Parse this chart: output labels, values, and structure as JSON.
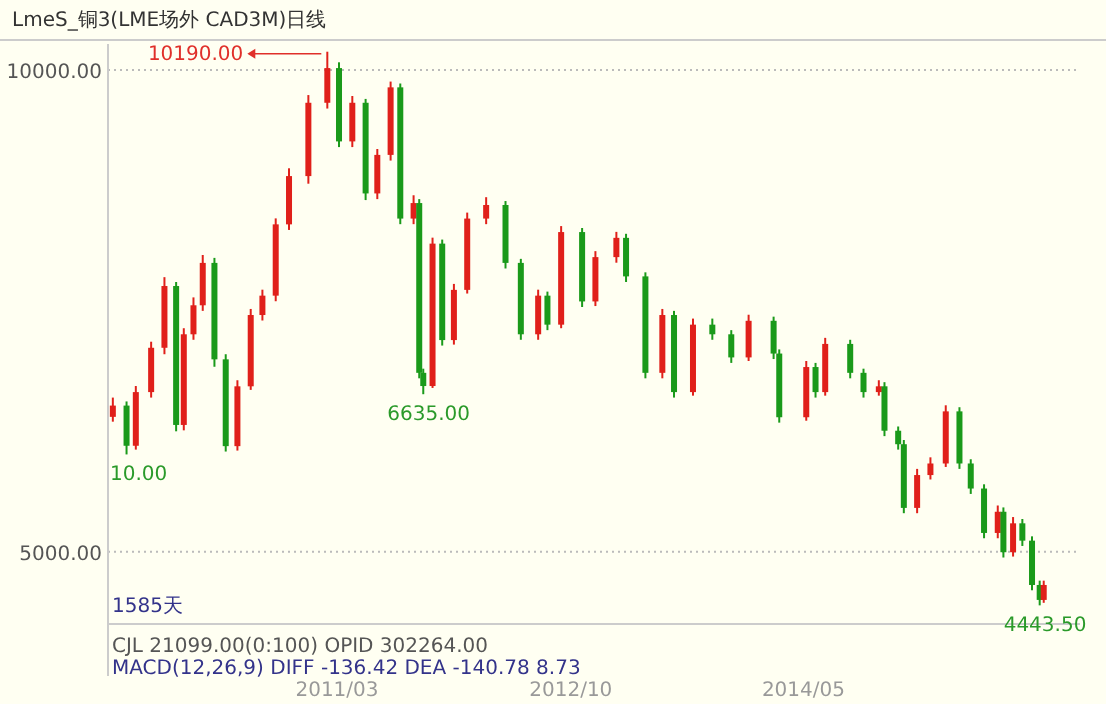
{
  "chart_data": {
    "type": "candlestick",
    "title": "LmeS_铜3(LME场外 CAD3M)日线",
    "x": [
      "2009-08-22",
      "2009-09-25",
      "2009-10-18",
      "2009-11-25",
      "2009-12-28",
      "2010-01-26",
      "2010-02-14",
      "2010-03-10",
      "2010-04-02",
      "2010-05-01",
      "2010-05-29",
      "2010-06-27",
      "2010-07-30",
      "2010-08-28",
      "2010-09-30",
      "2010-11-02",
      "2010-12-20",
      "2011-02-05",
      "2011-03-06",
      "2011-04-08",
      "2011-05-11",
      "2011-06-09",
      "2011-07-12",
      "2011-08-05",
      "2011-09-07",
      "2011-09-21",
      "2011-10-01",
      "2011-10-24",
      "2011-11-17",
      "2011-12-16",
      "2012-01-18",
      "2012-03-05",
      "2012-04-22",
      "2012-05-30",
      "2012-07-12",
      "2012-08-04",
      "2012-09-07",
      "2012-10-29",
      "2012-12-01",
      "2013-01-22",
      "2013-02-15",
      "2013-04-04",
      "2013-05-16",
      "2013-06-14",
      "2013-07-31",
      "2013-09-17",
      "2013-11-03",
      "2013-12-16",
      "2014-02-16",
      "2014-03-02",
      "2014-05-08",
      "2014-05-31",
      "2014-06-24",
      "2014-08-25",
      "2014-09-27",
      "2014-11-04",
      "2014-11-18",
      "2014-12-22",
      "2015-01-05",
      "2015-02-07",
      "2015-03-12",
      "2015-04-19",
      "2015-05-23",
      "2015-06-20",
      "2015-07-23",
      "2015-08-26",
      "2015-09-09",
      "2015-10-03",
      "2015-10-26",
      "2015-11-19",
      "2015-12-08",
      "2015-12-18"
    ],
    "ohlc": [
      [
        6400,
        6600,
        6350,
        6517
      ],
      [
        6517,
        6560,
        6010,
        6100
      ],
      [
        6100,
        6720,
        6060,
        6657
      ],
      [
        6657,
        7180,
        6600,
        7117
      ],
      [
        7117,
        7850,
        7050,
        7758
      ],
      [
        7758,
        7800,
        6250,
        6316
      ],
      [
        6316,
        7320,
        6260,
        7257
      ],
      [
        7257,
        7640,
        7200,
        7558
      ],
      [
        7558,
        8080,
        7500,
        7998
      ],
      [
        7998,
        8050,
        6920,
        6997
      ],
      [
        6997,
        7050,
        6040,
        6096
      ],
      [
        6096,
        6780,
        6050,
        6717
      ],
      [
        6717,
        7520,
        6680,
        7457
      ],
      [
        7457,
        7720,
        7400,
        7658
      ],
      [
        7658,
        8460,
        7600,
        8398
      ],
      [
        8398,
        8980,
        8340,
        8899
      ],
      [
        8899,
        9740,
        8820,
        9660
      ],
      [
        9660,
        10190,
        9600,
        10020
      ],
      [
        10020,
        10080,
        9200,
        9259
      ],
      [
        9259,
        9730,
        9200,
        9660
      ],
      [
        9660,
        9700,
        8650,
        8719
      ],
      [
        8719,
        9180,
        8660,
        9119
      ],
      [
        9119,
        9880,
        9060,
        9820
      ],
      [
        9820,
        9860,
        8400,
        8458
      ],
      [
        8458,
        8700,
        8400,
        8619
      ],
      [
        8619,
        8660,
        6800,
        6857
      ],
      [
        6857,
        6900,
        6635,
        6720
      ],
      [
        6720,
        8260,
        6700,
        8198
      ],
      [
        8198,
        8240,
        7140,
        7197
      ],
      [
        7197,
        7780,
        7150,
        7718
      ],
      [
        7718,
        8520,
        7680,
        8458
      ],
      [
        8458,
        8680,
        8400,
        8599
      ],
      [
        8599,
        8640,
        7940,
        7998
      ],
      [
        7998,
        8040,
        7200,
        7257
      ],
      [
        7257,
        7720,
        7200,
        7658
      ],
      [
        7658,
        7700,
        7300,
        7357
      ],
      [
        7357,
        8380,
        7320,
        8318
      ],
      [
        8318,
        8360,
        7540,
        7598
      ],
      [
        7598,
        8120,
        7550,
        8058
      ],
      [
        8058,
        8320,
        8000,
        8258
      ],
      [
        8258,
        8300,
        7800,
        7858
      ],
      [
        7858,
        7900,
        6800,
        6857
      ],
      [
        6857,
        7520,
        6800,
        7457
      ],
      [
        7457,
        7500,
        6600,
        6657
      ],
      [
        6657,
        7420,
        6620,
        7357
      ],
      [
        7357,
        7420,
        7200,
        7257
      ],
      [
        7257,
        7300,
        6960,
        7017
      ],
      [
        7017,
        7460,
        6980,
        7397
      ],
      [
        7397,
        7440,
        7000,
        7057
      ],
      [
        7057,
        7100,
        6340,
        6396
      ],
      [
        6396,
        6980,
        6360,
        6917
      ],
      [
        6917,
        6960,
        6600,
        6657
      ],
      [
        6657,
        7220,
        6620,
        7157
      ],
      [
        7157,
        7200,
        6800,
        6857
      ],
      [
        6857,
        6900,
        6600,
        6657
      ],
      [
        6657,
        6780,
        6620,
        6717
      ],
      [
        6717,
        6760,
        6200,
        6256
      ],
      [
        6256,
        6300,
        6060,
        6116
      ],
      [
        6116,
        6160,
        5400,
        5455
      ],
      [
        5455,
        5860,
        5400,
        5796
      ],
      [
        5796,
        5980,
        5750,
        5916
      ],
      [
        5916,
        6520,
        5880,
        6457
      ],
      [
        6457,
        6500,
        5860,
        5916
      ],
      [
        5916,
        5960,
        5600,
        5656
      ],
      [
        5656,
        5700,
        5140,
        5195
      ],
      [
        5195,
        5480,
        5140,
        5415
      ],
      [
        5415,
        5460,
        4940,
        4995
      ],
      [
        4995,
        5360,
        4950,
        5295
      ],
      [
        5295,
        5340,
        5060,
        5115
      ],
      [
        5115,
        5160,
        4600,
        4655
      ],
      [
        4655,
        4700,
        4443.5,
        4500
      ],
      [
        4500,
        4700,
        4470,
        4655
      ]
    ],
    "colors": [
      "#e0201a",
      "#1a9a1a",
      "#e0201a",
      "#e0201a",
      "#e0201a",
      "#1a9a1a",
      "#e0201a",
      "#e0201a",
      "#e0201a",
      "#1a9a1a",
      "#1a9a1a",
      "#e0201a",
      "#e0201a",
      "#e0201a",
      "#e0201a",
      "#e0201a",
      "#e0201a",
      "#e0201a",
      "#1a9a1a",
      "#e0201a",
      "#1a9a1a",
      "#e0201a",
      "#e0201a",
      "#1a9a1a",
      "#e0201a",
      "#1a9a1a",
      "#1a9a1a",
      "#e0201a",
      "#1a9a1a",
      "#e0201a",
      "#e0201a",
      "#e0201a",
      "#1a9a1a",
      "#1a9a1a",
      "#e0201a",
      "#1a9a1a",
      "#e0201a",
      "#1a9a1a",
      "#e0201a",
      "#e0201a",
      "#1a9a1a",
      "#1a9a1a",
      "#e0201a",
      "#1a9a1a",
      "#e0201a",
      "#1a9a1a",
      "#1a9a1a",
      "#e0201a",
      "#1a9a1a",
      "#1a9a1a",
      "#e0201a",
      "#1a9a1a",
      "#e0201a",
      "#1a9a1a",
      "#1a9a1a",
      "#e0201a",
      "#1a9a1a",
      "#1a9a1a",
      "#1a9a1a",
      "#e0201a",
      "#e0201a",
      "#e0201a",
      "#1a9a1a",
      "#1a9a1a",
      "#1a9a1a",
      "#e0201a",
      "#1a9a1a",
      "#e0201a",
      "#1a9a1a",
      "#1a9a1a",
      "#1a9a1a",
      "#e0201a"
    ],
    "xlim": [
      "2009-08-10",
      "2016-03-17"
    ],
    "xticks": [
      {
        "value": "2011-03",
        "label": "2011/03"
      },
      {
        "value": "2012-10",
        "label": "2012/10"
      },
      {
        "value": "2014-05",
        "label": "2014/05"
      }
    ],
    "ylim": [
      4250,
      10270
    ],
    "yticks": [
      {
        "value": 5000,
        "label": "5000.00"
      },
      {
        "value": 10000,
        "label": "10000.00"
      }
    ],
    "grid": "y",
    "annotations": [
      "10190.00",
      {
        "text": "6635.00",
        "x": "2011-10-01",
        "y": 6635
      },
      {
        "text": "10.00",
        "x": "2009-09-25",
        "y": 6010
      },
      {
        "text": "4443.50",
        "x": "2015-12-08",
        "y": 4443.5
      },
      "1585天",
      "CJL  21099.00(0:100)    OPID  302264.00",
      "MACD(12,26,9)  DIFF  -136.42    DEA  -140.78       8.73"
    ]
  }
}
